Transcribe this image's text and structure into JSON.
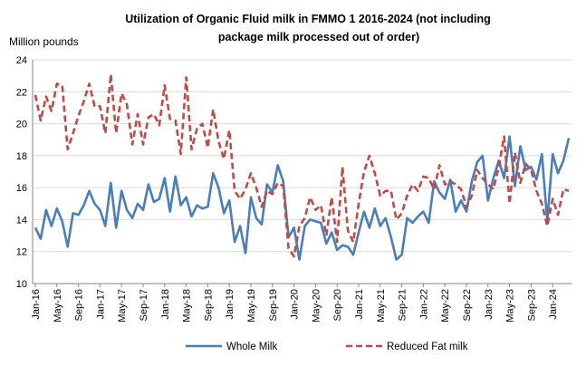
{
  "chart_data": {
    "type": "line",
    "title_line1": "Utilization of Organic Fluid milk in FMMO 1 2016-2024 (not including",
    "title_line2": "package milk processed out of order)",
    "ylabel": "Million pounds",
    "xlabel": "",
    "ylim": [
      10,
      24
    ],
    "yticks": [
      "10",
      "12",
      "14",
      "16",
      "18",
      "20",
      "22",
      "24"
    ],
    "grid": true,
    "legend_position": "bottom",
    "xtick_labels": [
      "Jan-16",
      "May-16",
      "Sep-16",
      "Jan-17",
      "May-17",
      "Sep-17",
      "Jan-18",
      "May-18",
      "Sep-18",
      "Jan-19",
      "May-19",
      "Sep-19",
      "Jan-20",
      "May-20",
      "Sep-20",
      "Jan-21",
      "May-21",
      "Sep-21",
      "Jan-22",
      "May-22",
      "Sep-22",
      "Jan-23",
      "May-23",
      "Sep-23",
      "Jan-24"
    ],
    "x_start": "Jan-16",
    "x_end": "Jan-24",
    "series": [
      {
        "name": "Whole Milk",
        "color": "#4a7ebb",
        "dash": false,
        "values": [
          13.5,
          12.8,
          14.6,
          13.6,
          14.7,
          13.9,
          12.3,
          14.4,
          14.3,
          14.9,
          15.8,
          15.0,
          14.6,
          13.6,
          16.3,
          13.5,
          15.8,
          14.6,
          14.1,
          15.0,
          14.6,
          16.2,
          15.1,
          15.3,
          16.6,
          14.5,
          16.7,
          14.9,
          15.4,
          14.2,
          14.9,
          14.7,
          14.8,
          16.9,
          16.0,
          14.4,
          15.2,
          12.6,
          13.6,
          11.9,
          15.4,
          14.1,
          13.7,
          16.2,
          15.7,
          17.4,
          16.4,
          12.9,
          13.5,
          11.5,
          13.6,
          14.0,
          13.9,
          13.8,
          12.5,
          13.2,
          12.1,
          12.4,
          12.3,
          11.8,
          13.2,
          14.5,
          13.5,
          14.7,
          13.6,
          14.1,
          12.9,
          11.5,
          11.8,
          14.1,
          13.8,
          14.2,
          14.5,
          13.8,
          16.4,
          15.7,
          15.3,
          16.5,
          14.5,
          15.2,
          14.5,
          16.4,
          17.6,
          18.0,
          15.2,
          16.6,
          17.7,
          16.6,
          19.2,
          16.1,
          18.6,
          17.1,
          17.3,
          16.5,
          18.1,
          13.9,
          18.1,
          16.9,
          17.7,
          19.1
        ]
      },
      {
        "name": "Reduced Fat milk",
        "color": "#be4b48",
        "dash": true,
        "values": [
          21.8,
          20.2,
          21.7,
          20.8,
          22.5,
          22.4,
          18.4,
          19.4,
          20.5,
          21.4,
          22.5,
          21.1,
          21.1,
          19.4,
          23.1,
          19.4,
          21.9,
          21.2,
          18.7,
          20.6,
          18.7,
          20.4,
          20.6,
          19.9,
          22.4,
          20.3,
          20.2,
          18.1,
          22.9,
          18.4,
          19.7,
          20.0,
          18.5,
          20.9,
          18.9,
          17.8,
          19.6,
          15.8,
          15.3,
          15.9,
          16.9,
          16.0,
          14.8,
          15.8,
          15.6,
          16.3,
          16.1,
          12.2,
          11.7,
          13.6,
          14.1,
          15.4,
          14.6,
          14.9,
          13.0,
          15.4,
          12.6,
          17.3,
          13.3,
          12.6,
          15.0,
          17.0,
          18.0,
          16.9,
          15.5,
          15.8,
          15.8,
          14.0,
          14.4,
          15.5,
          16.2,
          15.8,
          16.7,
          16.6,
          15.9,
          17.4,
          16.2,
          16.4,
          16.2,
          15.9,
          14.8,
          15.5,
          17.1,
          16.6,
          16.2,
          15.9,
          17.3,
          19.2,
          15.0,
          18.2,
          16.3,
          17.5,
          17.1,
          15.8,
          15.0,
          13.6,
          15.3,
          14.3,
          15.9,
          15.8
        ]
      }
    ]
  }
}
